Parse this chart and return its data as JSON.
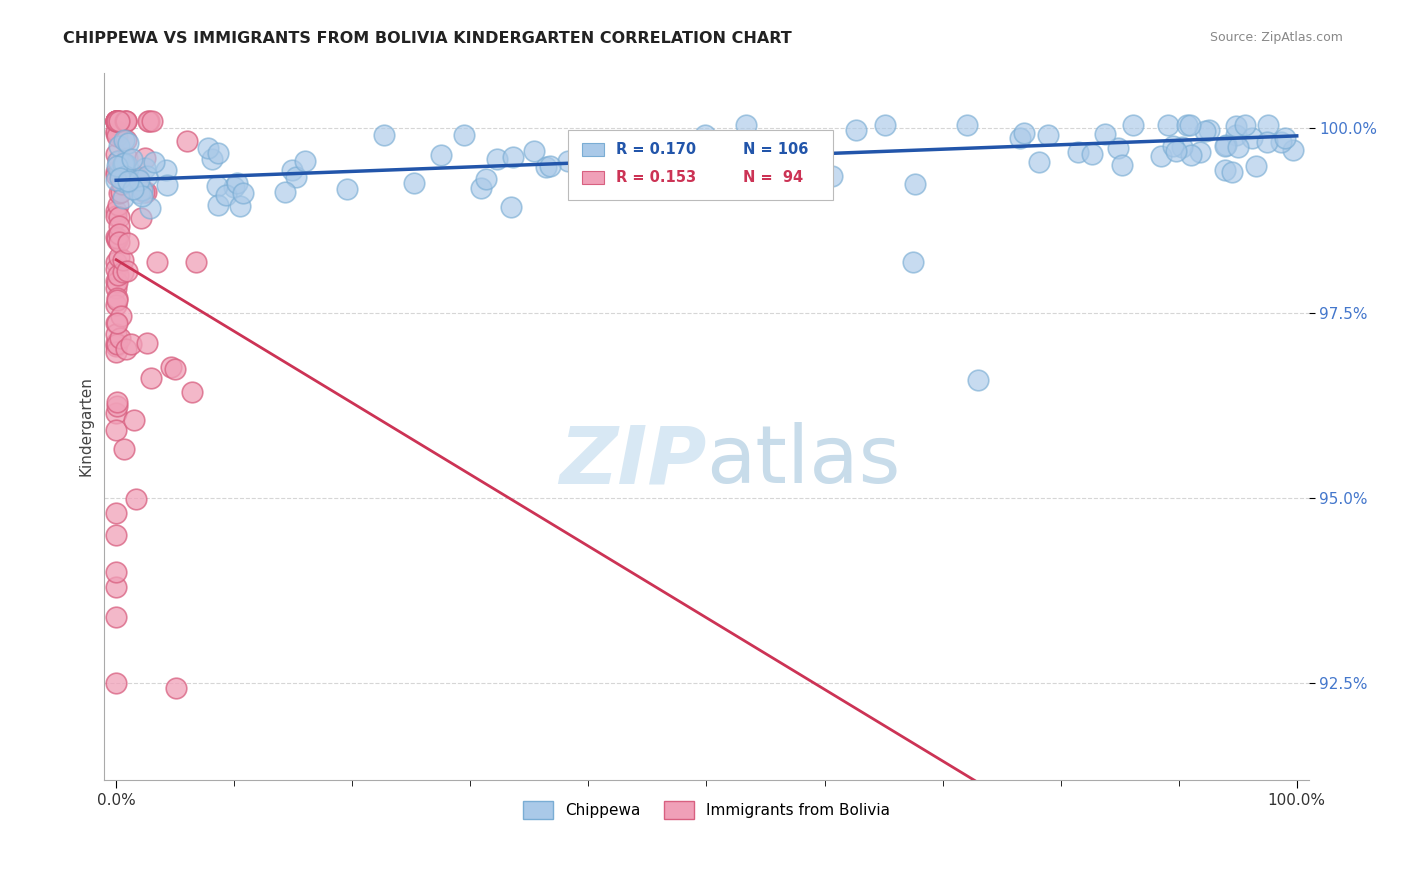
{
  "title": "CHIPPEWA VS IMMIGRANTS FROM BOLIVIA KINDERGARTEN CORRELATION CHART",
  "source": "Source: ZipAtlas.com",
  "ylabel": "Kindergarten",
  "ytick_values": [
    92.5,
    95.0,
    97.5,
    100.0
  ],
  "ytick_labels": [
    "92.5%",
    "95.0%",
    "97.5%",
    "100.0%"
  ],
  "chippewa_color": "#aac9e8",
  "chippewa_edge": "#7aadd4",
  "bolivia_color": "#f0a0b8",
  "bolivia_edge": "#d86080",
  "trend_chippewa_color": "#2255aa",
  "trend_bolivia_color": "#cc3355",
  "background_color": "#ffffff",
  "legend_chippewa_fill": "#aac9e8",
  "legend_bolivia_fill": "#f0a0b8",
  "watermark_color": "#d8e8f4",
  "grid_color": "#cccccc",
  "ytick_color": "#4477cc",
  "xtick_color": "#333333"
}
